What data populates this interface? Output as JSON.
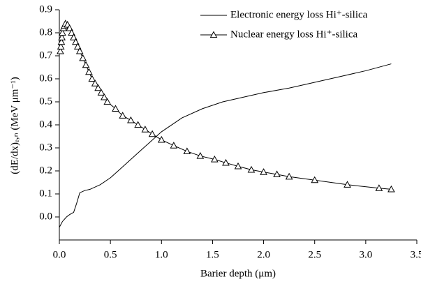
{
  "chart_data": {
    "type": "line",
    "x_label": "Barier depth (μm)",
    "y_label": "(dE/dx)ₑ,ₙ (MeV μm⁻¹)",
    "xlim": [
      0,
      3.5
    ],
    "ylim": [
      -0.1,
      0.9
    ],
    "xticks": [
      {
        "value": 0,
        "label": "0.0"
      },
      0.5,
      {
        "value": 1,
        "label": "1.0"
      },
      1.5,
      {
        "value": 2,
        "label": "2.0"
      },
      2.5,
      {
        "value": 3,
        "label": "3.0"
      },
      3.5
    ],
    "yticks": [
      {
        "value": 0,
        "label": "0.0"
      },
      0.1,
      0.2,
      0.3,
      0.4,
      0.5,
      0.6,
      0.7,
      0.8,
      0.9
    ],
    "legend": "top-right",
    "series": [
      {
        "name": "Electronic energy loss Hi⁺-silica",
        "color": "#000000",
        "marker": "none",
        "x": [
          0,
          0.03,
          0.07,
          0.1,
          0.14,
          0.17,
          0.2,
          0.25,
          0.3,
          0.4,
          0.5,
          0.6,
          0.7,
          0.8,
          0.9,
          1.0,
          1.2,
          1.4,
          1.6,
          1.8,
          2.0,
          2.25,
          2.5,
          2.75,
          3.0,
          3.25
        ],
        "values": [
          -0.045,
          -0.02,
          0.0,
          0.01,
          0.02,
          0.06,
          0.105,
          0.115,
          0.12,
          0.14,
          0.17,
          0.21,
          0.25,
          0.29,
          0.33,
          0.37,
          0.43,
          0.47,
          0.5,
          0.52,
          0.54,
          0.56,
          0.585,
          0.61,
          0.635,
          0.665
        ]
      },
      {
        "name": "Nuclear energy loss Hi⁺-silica",
        "color": "#000000",
        "marker": "triangle",
        "x": [
          0.01,
          0.015,
          0.02,
          0.025,
          0.03,
          0.04,
          0.05,
          0.06,
          0.08,
          0.1,
          0.12,
          0.14,
          0.16,
          0.18,
          0.2,
          0.23,
          0.26,
          0.29,
          0.32,
          0.35,
          0.38,
          0.41,
          0.44,
          0.47,
          0.55,
          0.62,
          0.7,
          0.77,
          0.84,
          0.91,
          1.0,
          1.12,
          1.25,
          1.38,
          1.52,
          1.63,
          1.75,
          1.88,
          2.0,
          2.13,
          2.25,
          2.5,
          2.82,
          3.13,
          3.25
        ],
        "values": [
          0.72,
          0.74,
          0.76,
          0.78,
          0.8,
          0.82,
          0.83,
          0.84,
          0.835,
          0.82,
          0.8,
          0.78,
          0.76,
          0.74,
          0.72,
          0.69,
          0.66,
          0.63,
          0.6,
          0.58,
          0.56,
          0.54,
          0.52,
          0.5,
          0.47,
          0.44,
          0.42,
          0.4,
          0.38,
          0.36,
          0.335,
          0.31,
          0.285,
          0.265,
          0.25,
          0.235,
          0.22,
          0.205,
          0.195,
          0.185,
          0.175,
          0.16,
          0.14,
          0.125,
          0.12
        ]
      }
    ]
  }
}
